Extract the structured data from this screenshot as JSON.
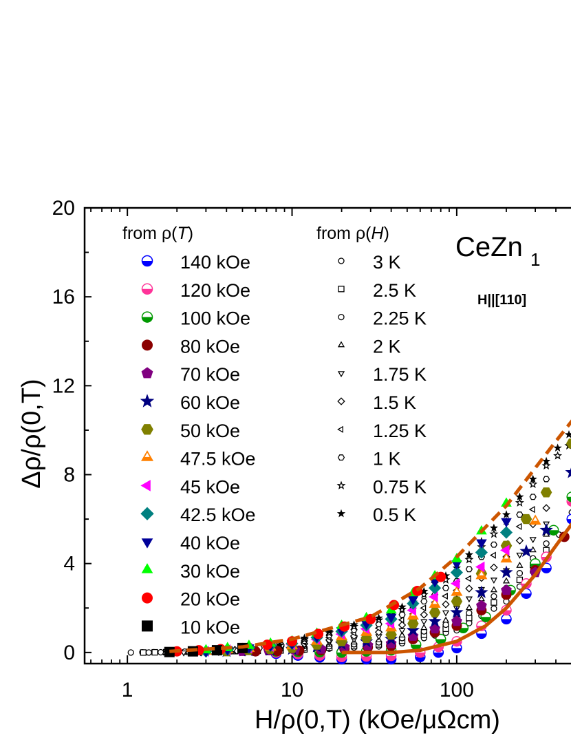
{
  "chart_data": {
    "type": "scatter",
    "title": "",
    "xlabel": "H/ρ(0,T) (kOe/μΩcm)",
    "ylabel": "Δρ/ρ(0,T)",
    "xscale": "log",
    "xlim": [
      0.55,
      560
    ],
    "ylim": [
      -0.5,
      20
    ],
    "x_ticks": [
      1,
      10,
      100
    ],
    "x_tick_labels": [
      "1",
      "10",
      "100"
    ],
    "y_ticks": [
      0,
      4,
      8,
      12,
      16,
      20
    ],
    "y_tick_labels": [
      "0",
      "4",
      "8",
      "12",
      "16",
      "20"
    ],
    "annotation": "CeZn1",
    "annotation_sub": "1",
    "field_direction": "H||[110]",
    "legend_placement": "top-left (inside plot)",
    "legend_groups": [
      {
        "header": "from ρ(T)",
        "header_plain": "from ρ(",
        "header_var": "T",
        "header_close": ")"
      },
      {
        "header": "from ρ(H)",
        "header_plain": "from ρ(",
        "header_var": "H",
        "header_close": ")"
      }
    ],
    "series_from_rho_T": [
      {
        "name": "140 kOe",
        "marker": "half-circle",
        "color": "#0000ff",
        "x": [
          8,
          20,
          40,
          60,
          100,
          200,
          350,
          500
        ],
        "y": [
          -0.05,
          -0.3,
          -0.3,
          -0.2,
          0.2,
          1.5,
          3.8,
          6.0
        ]
      },
      {
        "name": "120 kOe",
        "marker": "half-circle",
        "color": "#ff3399",
        "x": [
          8,
          20,
          40,
          60,
          100,
          200,
          350,
          500
        ],
        "y": [
          0.0,
          -0.2,
          -0.15,
          0.0,
          0.5,
          1.9,
          4.3,
          6.8
        ]
      },
      {
        "name": "100 kOe",
        "marker": "half-circle",
        "color": "#009900",
        "x": [
          8,
          20,
          40,
          80,
          150,
          300,
          500
        ],
        "y": [
          0.05,
          0.0,
          0.1,
          0.6,
          1.6,
          4.0,
          7.0
        ]
      },
      {
        "name": "80 kOe",
        "marker": "circle",
        "color": "#8b0000",
        "x": [
          6,
          15,
          40,
          100,
          200,
          300,
          450
        ],
        "y": [
          0.05,
          0.1,
          0.3,
          1.2,
          2.6,
          3.7,
          5.2
        ]
      },
      {
        "name": "70 kOe",
        "marker": "pentagon",
        "color": "#800080",
        "x": [
          5,
          15,
          40,
          100,
          200,
          300
        ],
        "y": [
          0.05,
          0.15,
          0.4,
          1.4,
          2.8,
          3.6
        ]
      },
      {
        "name": "60 kOe",
        "marker": "star",
        "color": "#000080",
        "x": [
          4,
          10,
          40,
          100,
          200,
          350,
          500
        ],
        "y": [
          0.05,
          0.15,
          0.6,
          1.8,
          3.6,
          5.5,
          8.1
        ]
      },
      {
        "name": "50 kOe",
        "marker": "hexagon",
        "color": "#808000",
        "x": [
          4,
          10,
          40,
          100,
          200,
          350,
          500
        ],
        "y": [
          0.05,
          0.2,
          0.8,
          2.3,
          4.8,
          7.2,
          9.4
        ]
      },
      {
        "name": "47.5 kOe",
        "marker": "triangle-half",
        "color": "#ff8000",
        "x": [
          3,
          10,
          40,
          100,
          200,
          300
        ],
        "y": [
          0.05,
          0.3,
          1.1,
          2.7,
          4.2,
          5.9
        ]
      },
      {
        "name": "45 kOe",
        "marker": "triangle-left",
        "color": "#ff00ff",
        "x": [
          3,
          10,
          40,
          100,
          200
        ],
        "y": [
          0.05,
          0.35,
          1.3,
          3.1,
          4.6
        ]
      },
      {
        "name": "42.5 kOe",
        "marker": "diamond",
        "color": "#008080",
        "x": [
          3,
          10,
          40,
          100,
          200
        ],
        "y": [
          0.05,
          0.4,
          1.5,
          3.6,
          5.4
        ]
      },
      {
        "name": "40 kOe",
        "marker": "triangle-down",
        "color": "#000099",
        "x": [
          3,
          10,
          40,
          100,
          200
        ],
        "y": [
          0.05,
          0.4,
          1.6,
          4.0,
          5.9
        ]
      },
      {
        "name": "30 kOe",
        "marker": "triangle-up",
        "color": "#00ff00",
        "x": [
          3,
          10,
          40,
          100,
          200
        ],
        "y": [
          0.1,
          0.5,
          1.9,
          4.2,
          6.7
        ]
      },
      {
        "name": "20 kOe",
        "marker": "circle",
        "color": "#ff0000",
        "x": [
          2,
          5,
          10,
          30,
          80
        ],
        "y": [
          0.05,
          0.2,
          0.5,
          1.5,
          3.4
        ]
      },
      {
        "name": "10 kOe",
        "marker": "square",
        "color": "#000000",
        "x": [
          1.8,
          2.5,
          3.5,
          5
        ],
        "y": [
          0.02,
          0.05,
          0.1,
          0.2
        ]
      }
    ],
    "series_from_rho_H": [
      {
        "name": "3 K",
        "marker": "circle-open",
        "x": [
          1.05,
          10,
          40,
          100,
          200,
          350,
          500
        ],
        "y": [
          0.0,
          0.1,
          0.3,
          1.0,
          2.3,
          4.3,
          6.3
        ]
      },
      {
        "name": "2.5 K",
        "marker": "square-open",
        "x": [
          1.25,
          10,
          40,
          100,
          200,
          350
        ],
        "y": [
          0.0,
          0.1,
          0.4,
          1.2,
          2.6,
          4.6
        ]
      },
      {
        "name": "2.25 K",
        "marker": "circle-open",
        "x": [
          1.35,
          10,
          40,
          100,
          200,
          350
        ],
        "y": [
          0.0,
          0.15,
          0.5,
          1.4,
          2.9,
          4.9
        ]
      },
      {
        "name": "2 K",
        "marker": "triangle-up-open",
        "x": [
          1.7,
          10,
          40,
          100,
          200,
          350
        ],
        "y": [
          0.0,
          0.2,
          0.6,
          1.6,
          3.2,
          5.3
        ]
      },
      {
        "name": "1.75 K",
        "marker": "triangle-down-open",
        "x": [
          2.2,
          10,
          40,
          100,
          200,
          350
        ],
        "y": [
          0.0,
          0.25,
          0.8,
          2.0,
          3.7,
          5.8
        ]
      },
      {
        "name": "1.5 K",
        "marker": "diamond-open",
        "x": [
          2.8,
          10,
          40,
          100,
          200,
          350
        ],
        "y": [
          0.0,
          0.3,
          1.0,
          2.4,
          4.3,
          6.5
        ]
      },
      {
        "name": "1.25 K",
        "marker": "triangle-left-open",
        "x": [
          3.5,
          10,
          40,
          100,
          200,
          350
        ],
        "y": [
          0.0,
          0.35,
          1.2,
          2.8,
          4.9,
          7.2
        ]
      },
      {
        "name": "1 K",
        "marker": "hexagon-open",
        "x": [
          4,
          10,
          40,
          100,
          200,
          350
        ],
        "y": [
          0.0,
          0.4,
          1.4,
          3.2,
          5.4,
          7.8
        ]
      },
      {
        "name": "0.75 K",
        "marker": "star-open",
        "x": [
          5,
          10,
          40,
          100,
          200,
          350,
          480
        ],
        "y": [
          0.0,
          0.45,
          1.6,
          3.6,
          5.9,
          8.4,
          9.3
        ]
      },
      {
        "name": "0.5 K",
        "marker": "star",
        "x": [
          6,
          10,
          40,
          100,
          200,
          350,
          480
        ],
        "y": [
          0.0,
          0.5,
          1.7,
          3.8,
          6.2,
          8.6,
          9.8
        ]
      }
    ],
    "guide_curves": [
      {
        "name": "",
        "style": "dashed",
        "color": "#cc5500",
        "x": [
          1.8,
          5,
          10,
          30,
          60,
          100,
          200,
          300,
          400,
          550
        ],
        "y": [
          0.05,
          0.25,
          0.6,
          1.6,
          2.9,
          4.3,
          6.6,
          8.3,
          9.5,
          10.8
        ]
      },
      {
        "name": "",
        "style": "solid",
        "color": "#cc5500",
        "x": [
          20,
          40,
          60,
          100,
          150,
          200,
          300,
          400,
          550
        ],
        "y": [
          0.0,
          0.0,
          0.1,
          0.5,
          1.2,
          2.0,
          3.5,
          4.8,
          6.2
        ]
      }
    ]
  }
}
